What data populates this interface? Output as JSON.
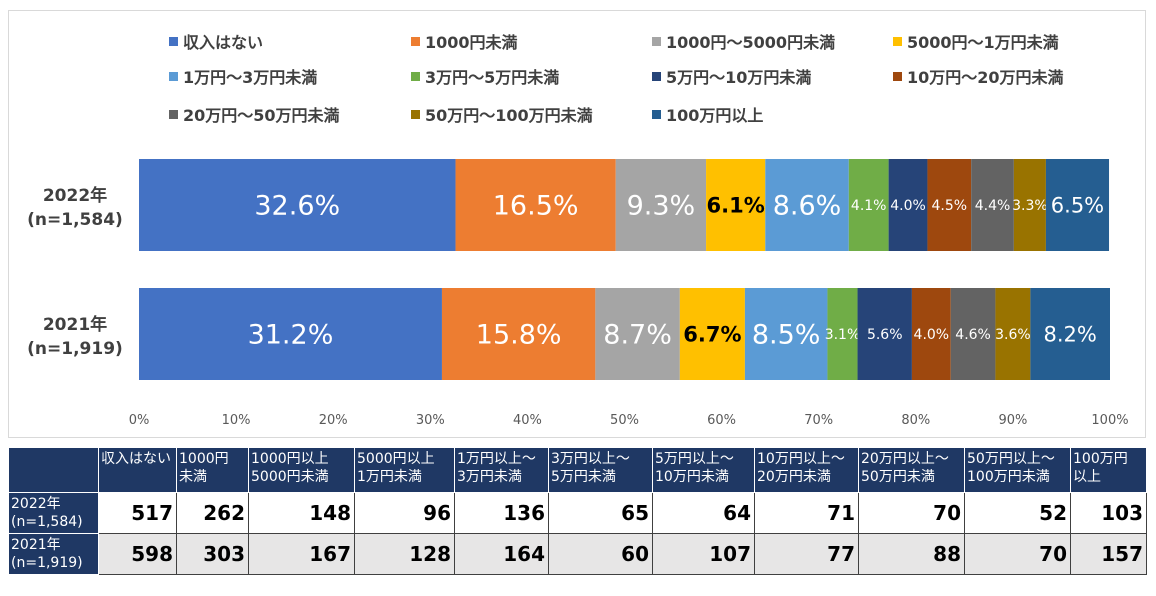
{
  "chart_data": {
    "type": "bar",
    "orientation": "horizontal",
    "stacked": true,
    "percent_stacked": true,
    "categories": [
      "2022年\n(n=1,584)",
      "2021年\n(n=1,919)"
    ],
    "series": [
      {
        "name": "収入はない",
        "color": "#4472c4",
        "values": [
          32.6,
          31.2
        ],
        "labels": [
          "32.6%",
          "31.2%"
        ]
      },
      {
        "name": "1000円未満",
        "color": "#ed7d31",
        "values": [
          16.5,
          15.8
        ],
        "labels": [
          "16.5%",
          "15.8%"
        ]
      },
      {
        "name": "1000円～5000円未満",
        "color": "#a5a5a5",
        "values": [
          9.3,
          8.7
        ],
        "labels": [
          "9.3%",
          "8.7%"
        ]
      },
      {
        "name": "5000円～1万円未満",
        "color": "#ffc000",
        "values": [
          6.1,
          6.7
        ],
        "labels": [
          "6.1%",
          "6.7%"
        ]
      },
      {
        "name": "1万円～3万円未満",
        "color": "#5b9bd5",
        "values": [
          8.6,
          8.5
        ],
        "labels": [
          "8.6%",
          "8.5%"
        ]
      },
      {
        "name": "3万円～5万円未満",
        "color": "#70ad47",
        "values": [
          4.1,
          3.1
        ],
        "labels": [
          "4.1%",
          "3.1%"
        ]
      },
      {
        "name": "5万円～10万円未満",
        "color": "#264478",
        "values": [
          4.0,
          5.6
        ],
        "labels": [
          "4.0%",
          "5.6%"
        ]
      },
      {
        "name": "10万円～20万円未満",
        "color": "#9e480e",
        "values": [
          4.5,
          4.0
        ],
        "labels": [
          "4.5%",
          "4.0%"
        ]
      },
      {
        "name": "20万円～50万円未満",
        "color": "#636363",
        "values": [
          4.4,
          4.6
        ],
        "labels": [
          "4.4%",
          "4.6%"
        ]
      },
      {
        "name": "50万円～100万円未満",
        "color": "#997300",
        "values": [
          3.3,
          3.6
        ],
        "labels": [
          "3.3%",
          "3.6%"
        ]
      },
      {
        "name": "100万円以上",
        "color": "#255e91",
        "values": [
          6.5,
          8.2
        ],
        "labels": [
          "6.5%",
          "8.2%"
        ]
      }
    ],
    "xlim": [
      0,
      100
    ],
    "xticks": [
      "0%",
      "10%",
      "20%",
      "30%",
      "40%",
      "50%",
      "60%",
      "70%",
      "80%",
      "90%",
      "100%"
    ],
    "legend_position": "top",
    "grid": false
  },
  "table": {
    "headers": [
      "",
      "収入はない",
      "1000円\n未満",
      "1000円以上\n5000円未満",
      "5000円以上\n1万円未満",
      "1万円以上～\n3万円未満",
      "3万円以上～\n5万円未満",
      "5万円以上～\n10万円未満",
      "10万円以上～\n20万円未満",
      "20万円以上～\n50万円未満",
      "50万円以上～\n100万円未満",
      "100万円\n以上"
    ],
    "rows": [
      {
        "label": "2022年\n(n=1,584)",
        "values": [
          "517",
          "262",
          "148",
          "96",
          "136",
          "65",
          "64",
          "71",
          "70",
          "52",
          "103"
        ]
      },
      {
        "label": "2021年\n(n=1,919)",
        "values": [
          "598",
          "303",
          "167",
          "128",
          "164",
          "60",
          "107",
          "77",
          "88",
          "70",
          "157"
        ]
      }
    ]
  }
}
